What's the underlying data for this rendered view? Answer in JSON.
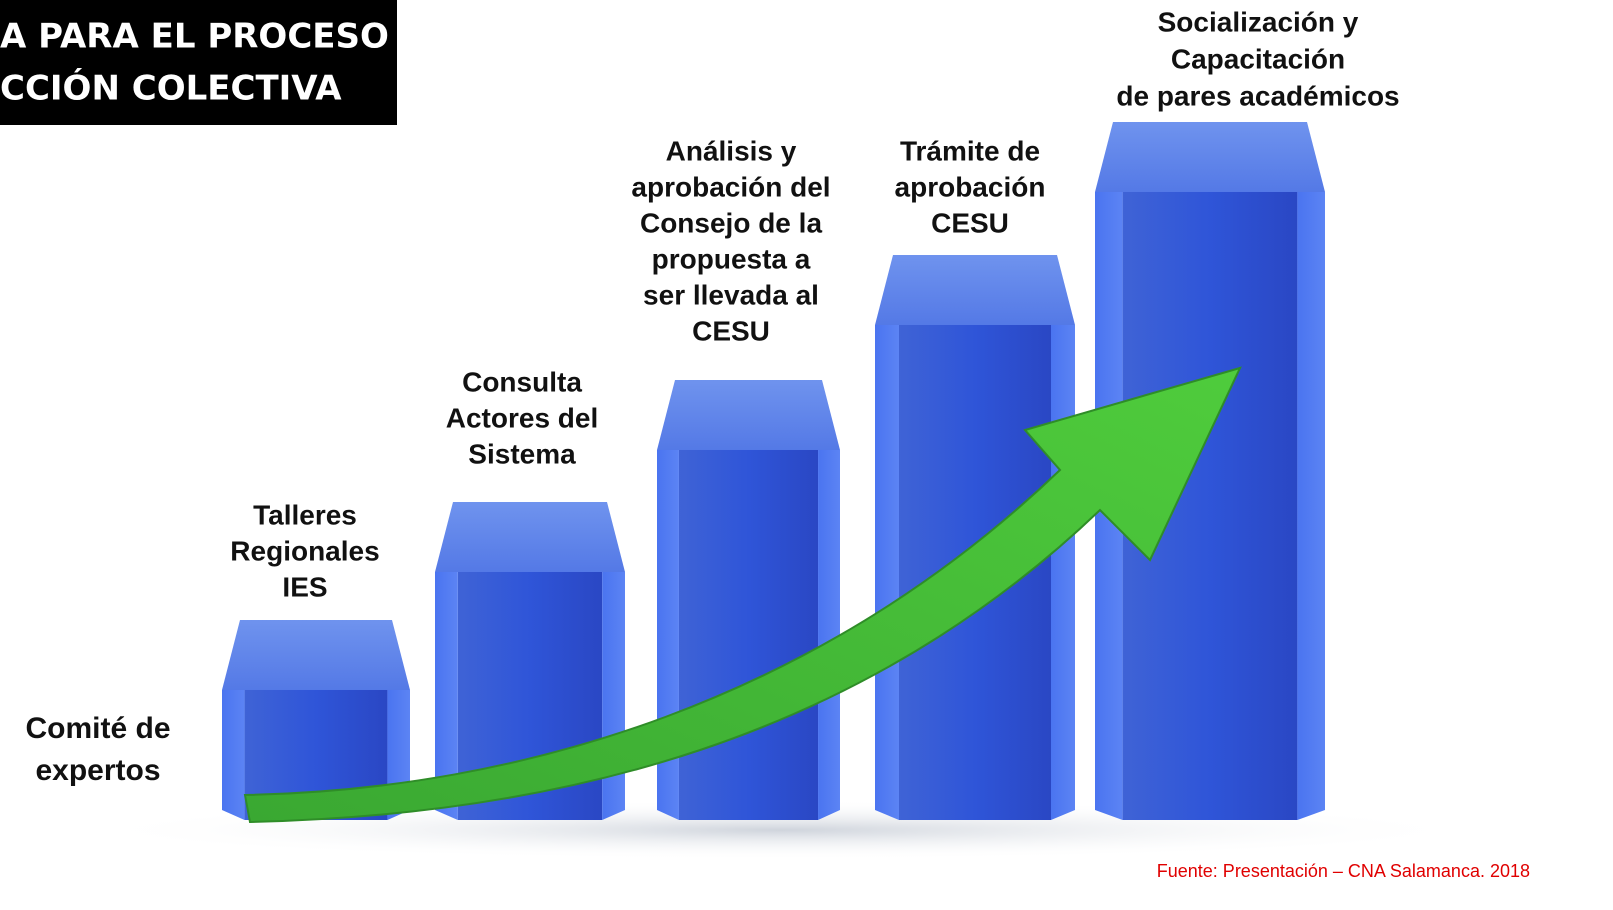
{
  "title": {
    "lines": [
      "A PARA EL PROCESO",
      "CCIÓN COLECTIVA"
    ]
  },
  "steps": [
    {
      "lines": [
        "Comité de",
        "expertos"
      ]
    },
    {
      "lines": [
        "Talleres",
        "Regionales",
        "IES"
      ]
    },
    {
      "lines": [
        "Consulta",
        "Actores del",
        "Sistema"
      ]
    },
    {
      "lines": [
        "Análisis y",
        "aprobación del",
        "Consejo de la",
        "propuesta a",
        "ser llevada al",
        "CESU"
      ]
    },
    {
      "lines": [
        "Trámite de",
        "aprobación",
        "CESU"
      ]
    },
    {
      "lines": [
        "Socialización y",
        "Capacitación",
        "de pares académicos"
      ]
    }
  ],
  "source": "Fuente: Presentación – CNA Salamanca. 2018"
}
